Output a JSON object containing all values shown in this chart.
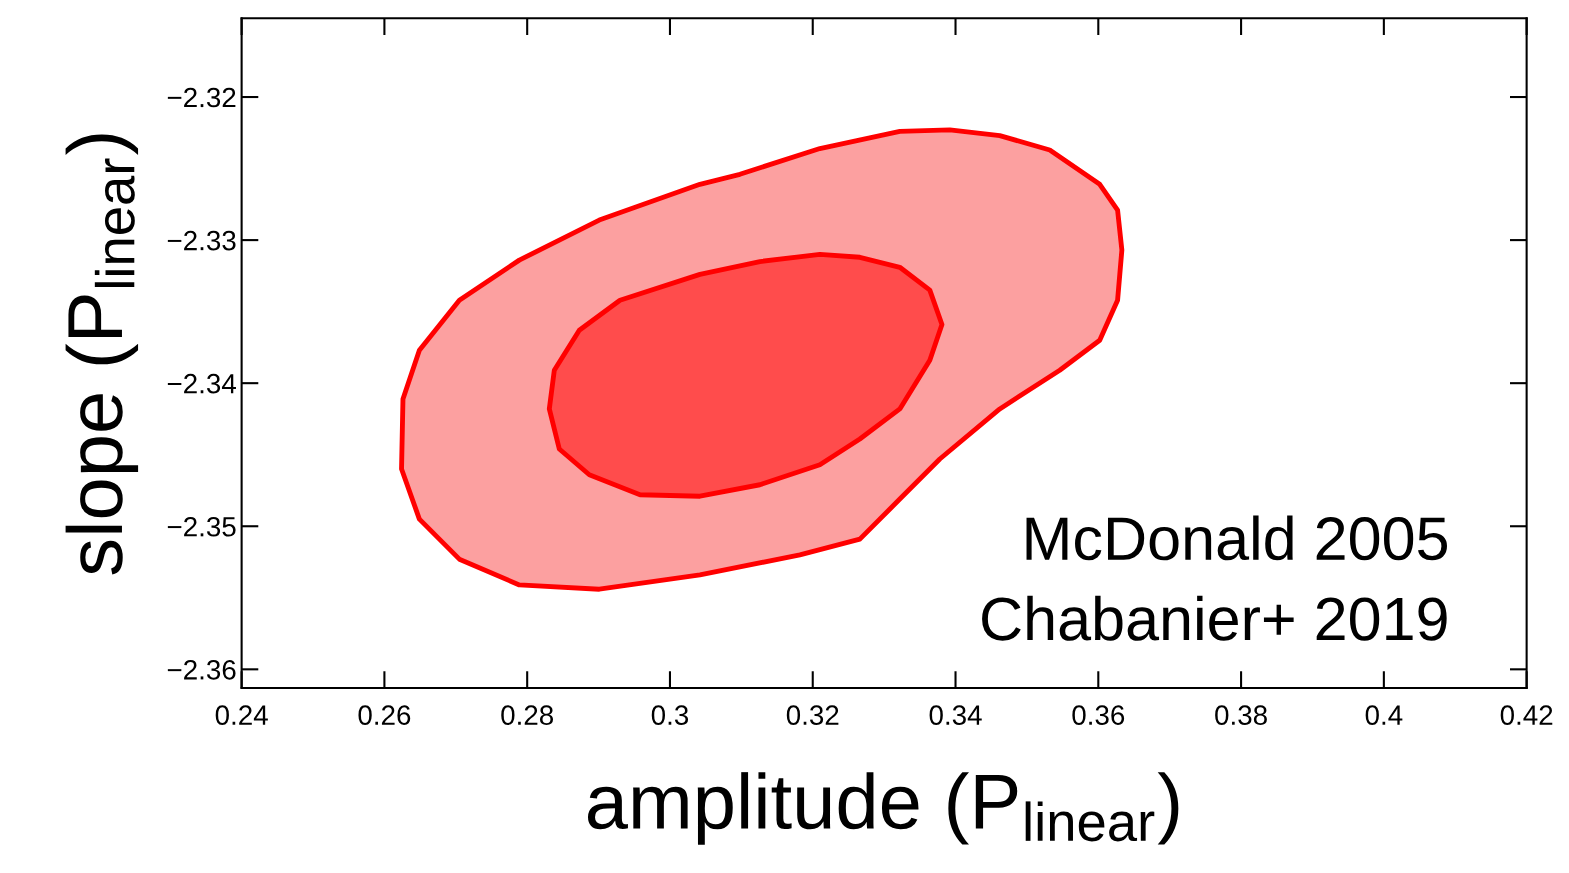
{
  "chart_data": {
    "type": "area",
    "xlabel": "amplitude (P$_{linear}$)",
    "ylabel": "slope (P$_{linear}$)",
    "xlim": [
      0.24,
      0.42
    ],
    "ylim": [
      -2.3613,
      -2.3145
    ],
    "xticks": [
      0.24,
      0.26,
      0.28,
      0.3,
      0.32,
      0.34,
      0.36,
      0.38,
      0.4,
      0.42
    ],
    "yticks": [
      {
        "value": -2.36,
        "label": "−2.36"
      },
      {
        "value": -2.35,
        "label": "−2.35"
      },
      {
        "value": -2.34,
        "label": "−2.34"
      },
      {
        "value": -2.33,
        "label": "−2.33"
      },
      {
        "value": -2.32,
        "label": "−2.32"
      }
    ],
    "grid": false,
    "legend": false,
    "annotations": [
      "McDonald 2005",
      "Chabanier+ 2019"
    ],
    "series": [
      {
        "color": "#fca0a0",
        "x": [
          0.2624,
          0.2626,
          0.2649,
          0.2705,
          0.2789,
          0.2901,
          0.3042,
          0.3098,
          0.321,
          0.3322,
          0.3392,
          0.3462,
          0.3532,
          0.3602,
          0.3627,
          0.3633,
          0.3627,
          0.3602,
          0.3546,
          0.3462,
          0.3378,
          0.3322,
          0.3266,
          0.3182,
          0.3042,
          0.2901,
          0.2789,
          0.2705,
          0.2649,
          0.2624
        ],
        "values": [
          -2.346,
          -2.3411,
          -2.3377,
          -2.3342,
          -2.3314,
          -2.3286,
          -2.3261,
          -2.3254,
          -2.3236,
          -2.3224,
          -2.3223,
          -2.3227,
          -2.3237,
          -2.3261,
          -2.3279,
          -2.3307,
          -2.3342,
          -2.337,
          -2.3391,
          -2.3418,
          -2.3453,
          -2.3481,
          -2.3509,
          -2.352,
          -2.3534,
          -2.3544,
          -2.3541,
          -2.3523,
          -2.3495,
          -2.346
        ]
      },
      {
        "color": "#ff4c4c",
        "x": [
          0.2831,
          0.2838,
          0.2873,
          0.293,
          0.3042,
          0.3126,
          0.321,
          0.3266,
          0.3322,
          0.3364,
          0.3381,
          0.3364,
          0.3322,
          0.3266,
          0.321,
          0.3126,
          0.3042,
          0.2958,
          0.2887,
          0.2845,
          0.2831
        ],
        "values": [
          -2.3418,
          -2.3391,
          -2.3363,
          -2.3342,
          -2.3324,
          -2.3315,
          -2.331,
          -2.3312,
          -2.3319,
          -2.3335,
          -2.3359,
          -2.3384,
          -2.3418,
          -2.3439,
          -2.3457,
          -2.3471,
          -2.3479,
          -2.3478,
          -2.3464,
          -2.3446,
          -2.3418
        ]
      }
    ]
  }
}
